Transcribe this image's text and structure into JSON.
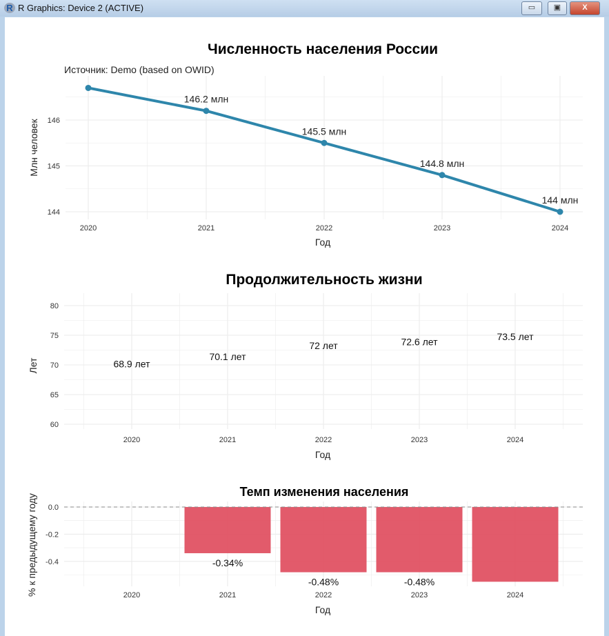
{
  "window": {
    "title": "R Graphics: Device 2 (ACTIVE)",
    "minimize": "▭",
    "maximize": "▣",
    "close": "X"
  },
  "chart_data": [
    {
      "type": "line",
      "title": "Численность населения России",
      "subtitle": "Источник: Demo (based on OWID)",
      "xlabel": "Год",
      "ylabel": "Млн человек",
      "x": [
        2020,
        2021,
        2022,
        2023,
        2024
      ],
      "values": [
        146.7,
        146.2,
        145.5,
        144.8,
        144.0
      ],
      "labels": [
        "",
        "146.2 млн",
        "145.5 млн",
        "144.8 млн",
        "144 млн"
      ],
      "yticks": [
        "144",
        "145",
        "146"
      ],
      "xticks": [
        "2020",
        "2021",
        "2022",
        "2023",
        "2024"
      ],
      "ylim": [
        143.9,
        146.9
      ],
      "color": "#2e86ab",
      "grid": true
    },
    {
      "type": "text",
      "title": "Продолжительность жизни",
      "xlabel": "Год",
      "ylabel": "Лет",
      "x": [
        2020,
        2021,
        2022,
        2023,
        2024
      ],
      "values": [
        68.9,
        70.1,
        72.0,
        72.6,
        73.5
      ],
      "labels": [
        "68.9 лет",
        "70.1 лет",
        "72 лет",
        "72.6 лет",
        "73.5 лет"
      ],
      "yticks": [
        "60",
        "65",
        "70",
        "75",
        "80"
      ],
      "xticks": [
        "2020",
        "2021",
        "2022",
        "2023",
        "2024"
      ],
      "ylim": [
        59.5,
        81
      ],
      "grid": true
    },
    {
      "type": "bar",
      "title": "Темп изменения населения",
      "xlabel": "Год",
      "ylabel": "% к предыдущему году",
      "categories": [
        "2020",
        "2021",
        "2022",
        "2023",
        "2024"
      ],
      "values": [
        0,
        -0.34,
        -0.48,
        -0.48,
        -0.55
      ],
      "labels": [
        "",
        "-0.34%",
        "-0.48%",
        "-0.48%",
        ""
      ],
      "yticks": [
        "-0.4",
        "-0.2",
        "0.0"
      ],
      "ylim": [
        -0.57,
        0.04
      ],
      "color": "#e05263",
      "grid": true
    }
  ]
}
